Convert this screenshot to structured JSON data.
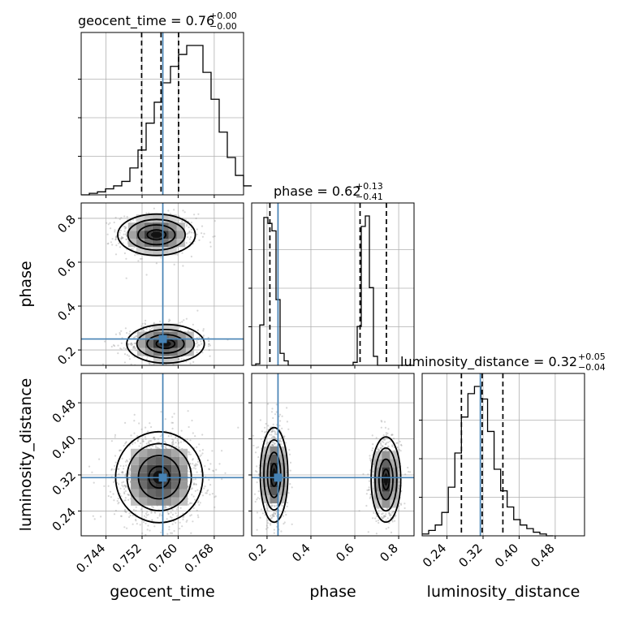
{
  "chart_data": {
    "type": "corner",
    "parameters": [
      "geocent_time",
      "phase",
      "luminosity_distance"
    ],
    "axis_labels": {
      "x": [
        "geocent_time",
        "phase",
        "luminosity_distance"
      ],
      "y": [
        "phase",
        "luminosity_distance"
      ]
    },
    "titles": [
      {
        "name": "geocent_time",
        "median": "0.76",
        "plus": "+0.00",
        "minus": "−0.00"
      },
      {
        "name": "phase",
        "median": "0.62",
        "plus": "+0.13",
        "minus": "−0.41"
      },
      {
        "name": "luminosity_distance",
        "median": "0.32",
        "plus": "+0.05",
        "minus": "−0.04"
      }
    ],
    "truths": [
      0.7566,
      0.25,
      0.314
    ],
    "ranges": [
      [
        0.7385,
        0.7745
      ],
      [
        0.13,
        0.87
      ],
      [
        0.185,
        0.545
      ]
    ],
    "ticks": {
      "geocent_time": [
        "0.744",
        "0.752",
        "0.760",
        "0.768"
      ],
      "phase": [
        "0.2",
        "0.4",
        "0.6",
        "0.8"
      ],
      "luminosity_distance": [
        "0.24",
        "0.32",
        "0.40",
        "0.48"
      ]
    },
    "quantile_lines": {
      "geocent_time": [
        0.7519,
        0.7562,
        0.7601
      ],
      "phase": [
        0.213,
        0.624,
        0.744
      ],
      "luminosity_distance": [
        0.272,
        0.318,
        0.364
      ]
    },
    "histograms": {
      "geocent_time": {
        "edges_start": 0.7385,
        "bin_width": 0.0018,
        "counts": [
          0,
          1,
          2,
          4,
          6,
          9,
          18,
          30,
          48,
          62,
          75,
          86,
          94,
          100,
          100,
          82,
          64,
          42,
          25,
          13,
          6
        ]
      },
      "phase": {
        "edges_start": 0.13,
        "bin_width": 0.0185,
        "counts": [
          0,
          1,
          27,
          99,
          95,
          90,
          44,
          8,
          3,
          0,
          0,
          0,
          0,
          0,
          0,
          0,
          0,
          0,
          0,
          0,
          0,
          0,
          0,
          0,
          0,
          2,
          26,
          93,
          100,
          52,
          6,
          0,
          0,
          0,
          0,
          0,
          0,
          0,
          0,
          0
        ]
      },
      "luminosity_distance": {
        "edges_start": 0.185,
        "bin_width": 0.0145,
        "counts": [
          1,
          3,
          6,
          13,
          27,
          46,
          66,
          79,
          83,
          76,
          58,
          37,
          25,
          16,
          9,
          6,
          4,
          2,
          1,
          0
        ]
      }
    },
    "modes_2d": {
      "phase_vs_geocent_time": [
        {
          "x": 0.7552,
          "y": 0.725,
          "sx": 0.0041,
          "sy": 0.045
        },
        {
          "x": 0.7572,
          "y": 0.228,
          "sx": 0.0041,
          "sy": 0.042
        }
      ],
      "luminosity_distance_vs_geocent_time": [
        {
          "x": 0.7558,
          "y": 0.315,
          "sx": 0.0046,
          "sy": 0.048
        }
      ],
      "luminosity_distance_vs_phase": [
        {
          "x": 0.232,
          "y": 0.32,
          "sx": 0.03,
          "sy": 0.05
        },
        {
          "x": 0.742,
          "y": 0.31,
          "sx": 0.032,
          "sy": 0.045
        }
      ]
    },
    "grid": true
  }
}
